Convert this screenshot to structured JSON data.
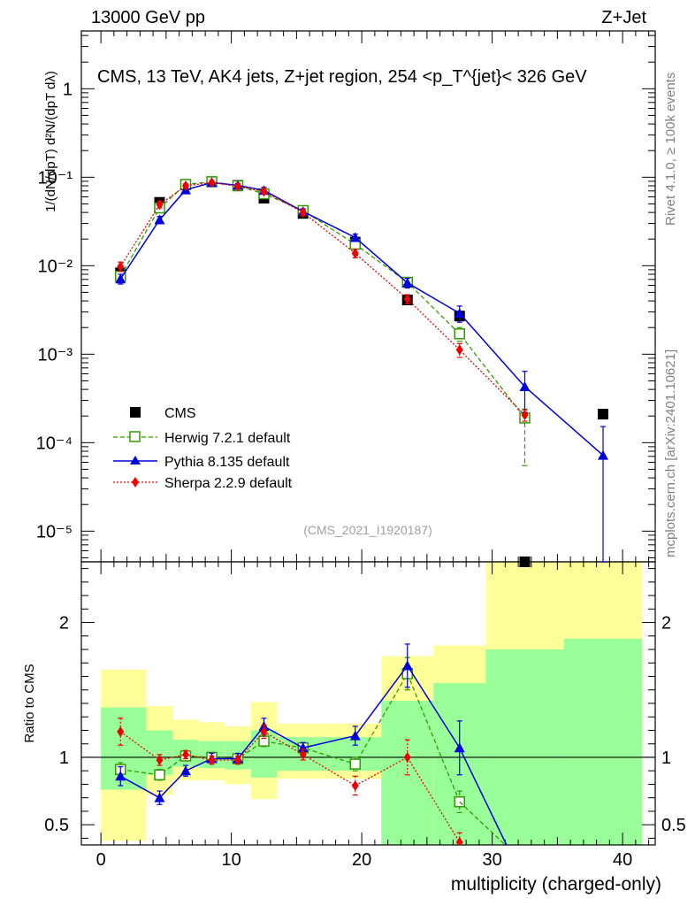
{
  "header": {
    "left": "13000 GeV pp",
    "right": "Z+Jet"
  },
  "side_labels": {
    "top": "Rivet 4.1.0, ≥ 100k events",
    "bottom": "mcplots.cern.ch [arXiv:2401.10621]"
  },
  "watermark": "(CMS_2021_I1920187)",
  "colors": {
    "cms": "#000000",
    "herwig": "#339900",
    "pythia": "#0000dd",
    "sherpa": "#ee0000",
    "band_yellow": "#ffff99",
    "band_green": "#99ff99"
  },
  "chart_data": [
    {
      "type": "scatter",
      "panel": "main",
      "title": "CMS, 13 TeV, AK4 jets, Z+jet region, 254 <p_T^{jet}< 326 GeV",
      "ylabel": "1/(dN/dpT) d²N/(dpT dλ)",
      "yscale": "log",
      "ylim": [
        4.5e-06,
        4.5
      ],
      "xlim": [
        -1.5,
        42.5
      ],
      "y_ticks": [
        "10⁻⁵",
        "10⁻⁴",
        "10⁻³",
        "10⁻²",
        "10⁻¹",
        "1"
      ],
      "x": [
        1.5,
        4.5,
        6.5,
        8.5,
        10.5,
        12.5,
        15.5,
        19.5,
        23.5,
        27.5,
        32.5,
        38.5
      ],
      "series": [
        {
          "name": "CMS",
          "legend": "CMS",
          "values": [
            0.0083,
            0.052,
            0.082,
            0.089,
            0.081,
            0.058,
            0.039,
            0.0185,
            0.0041,
            0.0027,
            4.2e-06,
            0.00021
          ]
        },
        {
          "name": "Herwig",
          "legend": "Herwig 7.2.1 default",
          "values": [
            0.0076,
            0.045,
            0.083,
            0.089,
            0.08,
            0.065,
            0.042,
            0.0175,
            0.0065,
            0.0017,
            0.00019,
            null
          ],
          "err_up": [
            0.0009,
            0.004,
            0.005,
            0.004,
            0.004,
            0.004,
            0.003,
            0.0015,
            0.0006,
            0.0003,
            5e-05,
            null
          ],
          "err_down": [
            0.0009,
            0.004,
            0.005,
            0.004,
            0.004,
            0.004,
            0.003,
            0.0015,
            0.0006,
            0.0003,
            0.000135,
            null
          ]
        },
        {
          "name": "Pythia",
          "legend": "Pythia 8.135 default",
          "values": [
            0.0071,
            0.033,
            0.072,
            0.087,
            0.081,
            0.071,
            0.041,
            0.0208,
            0.0064,
            0.0029,
            0.00043,
            7.2e-05
          ],
          "err_up": [
            0.0009,
            0.003,
            0.004,
            0.004,
            0.004,
            0.006,
            0.003,
            0.002,
            0.0008,
            0.0006,
            0.00021,
            8e-05
          ],
          "err_down": [
            0.0009,
            0.003,
            0.004,
            0.004,
            0.004,
            0.006,
            0.003,
            0.002,
            0.0008,
            0.0006,
            0.00021,
            7e-05
          ]
        },
        {
          "name": "Sherpa",
          "legend": "Sherpa 2.2.9 default",
          "values": [
            0.0098,
            0.049,
            0.08,
            0.087,
            0.079,
            0.069,
            0.04,
            0.0138,
            0.0042,
            0.00112,
            0.000205,
            null
          ],
          "err_up": [
            0.0012,
            0.004,
            0.004,
            0.004,
            0.004,
            0.004,
            0.003,
            0.0015,
            0.0005,
            0.0002,
            3e-05,
            null
          ],
          "err_down": [
            0.0012,
            0.004,
            0.004,
            0.004,
            0.004,
            0.004,
            0.003,
            0.0015,
            0.0005,
            0.0002,
            3e-05,
            null
          ]
        }
      ]
    },
    {
      "type": "scatter",
      "panel": "ratio",
      "ylabel": "Ratio to CMS",
      "xlabel": "multiplicity (charged-only)",
      "ylim": [
        0.35,
        2.45
      ],
      "xlim": [
        -1.5,
        42.5
      ],
      "x_ticks": [
        "0",
        "10",
        "20",
        "30",
        "40"
      ],
      "y_ticks": [
        "0.5",
        "1",
        "2"
      ],
      "bins": [
        [
          0,
          3.5
        ],
        [
          3.5,
          5.5
        ],
        [
          5.5,
          7.5
        ],
        [
          7.5,
          9.5
        ],
        [
          9.5,
          11.5
        ],
        [
          11.5,
          13.5
        ],
        [
          13.5,
          17.5
        ],
        [
          17.5,
          21.5
        ],
        [
          21.5,
          25.5
        ],
        [
          25.5,
          29.5
        ],
        [
          29.5,
          35.5
        ],
        [
          35.5,
          41.5
        ]
      ],
      "band_yellow": [
        [
          0.38,
          1.65
        ],
        [
          0.72,
          1.38
        ],
        [
          0.83,
          1.28
        ],
        [
          0.83,
          1.26
        ],
        [
          0.8,
          1.23
        ],
        [
          0.69,
          1.41
        ],
        [
          0.84,
          1.25
        ],
        [
          0.84,
          1.25
        ],
        [
          0,
          1.75
        ],
        [
          0,
          1.83
        ],
        [
          0,
          2.45
        ],
        [
          0,
          2.45
        ]
      ],
      "band_green": [
        [
          0.76,
          1.37
        ],
        [
          0.87,
          1.2
        ],
        [
          0.93,
          1.13
        ],
        [
          0.92,
          1.12
        ],
        [
          0.91,
          1.12
        ],
        [
          0.85,
          1.2
        ],
        [
          0.9,
          1.15
        ],
        [
          0.9,
          1.15
        ],
        [
          0,
          1.42
        ],
        [
          0,
          1.55
        ],
        [
          0,
          1.8
        ],
        [
          0,
          1.88
        ]
      ],
      "x": [
        1.5,
        4.5,
        6.5,
        8.5,
        10.5,
        12.5,
        15.5,
        19.5,
        23.5,
        27.5
      ],
      "series": [
        {
          "name": "Herwig",
          "values": [
            0.91,
            0.87,
            1.01,
            1.0,
            0.99,
            1.12,
            1.07,
            0.95,
            1.62,
            0.67
          ],
          "err": [
            0.05,
            0.04,
            0.03,
            0.03,
            0.03,
            0.04,
            0.03,
            0.05,
            0.12,
            0.08
          ]
        },
        {
          "name": "Pythia",
          "values": [
            0.86,
            0.7,
            0.9,
            0.99,
            0.99,
            1.23,
            1.07,
            1.16,
            1.68,
            1.07
          ],
          "err": [
            0.07,
            0.05,
            0.04,
            0.04,
            0.04,
            0.06,
            0.04,
            0.07,
            0.16,
            0.2
          ]
        },
        {
          "name": "Sherpa",
          "values": [
            1.19,
            0.98,
            1.02,
            0.98,
            0.98,
            1.19,
            1.02,
            0.79,
            1.0,
            0.37
          ],
          "err": [
            0.1,
            0.04,
            0.03,
            0.03,
            0.03,
            0.05,
            0.04,
            0.07,
            0.13,
            0.07
          ]
        }
      ],
      "offscale_lines": [
        {
          "name": "Herwig",
          "x": [
            27.5,
            31
          ],
          "values": [
            0.67,
            0.35
          ]
        },
        {
          "name": "Pythia",
          "x": [
            27.5,
            31.1
          ],
          "values": [
            1.07,
            0.35
          ]
        }
      ]
    }
  ]
}
